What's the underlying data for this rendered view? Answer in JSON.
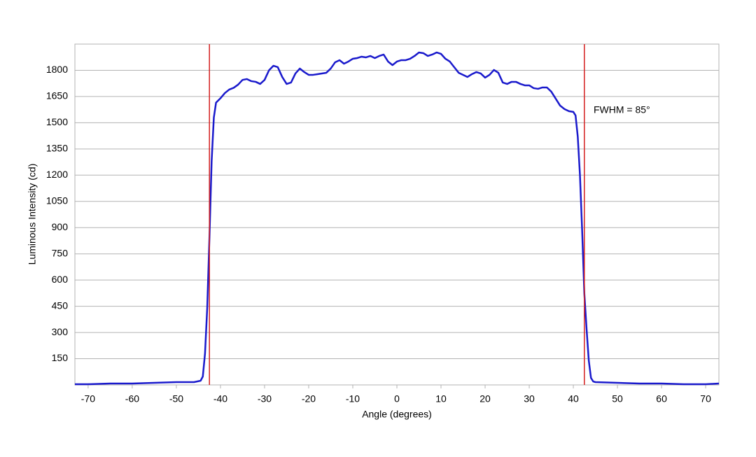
{
  "chart_data": {
    "type": "line",
    "xlabel": "Angle (degrees)",
    "ylabel": "Luminous Intensity (cd)",
    "annotation": "FWHM = 85°",
    "xlim": [
      -73,
      73
    ],
    "xticks": [
      -70,
      -60,
      -50,
      -40,
      -30,
      -20,
      -10,
      0,
      10,
      20,
      30,
      40,
      50,
      60,
      70
    ],
    "ylim": [
      0,
      1950
    ],
    "yticks": [
      150,
      300,
      450,
      600,
      750,
      900,
      1050,
      1200,
      1350,
      1500,
      1650,
      1800
    ],
    "grid": true,
    "vlines": [
      -42.5,
      42.5
    ],
    "vline_color": "#d42020",
    "x": [
      -73,
      -70,
      -65,
      -60,
      -55,
      -50,
      -46,
      -44.5,
      -44,
      -43.5,
      -43,
      -42.5,
      -42,
      -41.5,
      -41,
      -40,
      -39,
      -38,
      -37,
      -36,
      -35,
      -34,
      -33,
      -32,
      -31,
      -30,
      -29,
      -28,
      -27,
      -26,
      -25,
      -24,
      -23,
      -22,
      -21,
      -20,
      -19,
      -18,
      -17,
      -16,
      -15,
      -14,
      -13,
      -12,
      -11,
      -10,
      -9,
      -8,
      -7,
      -6,
      -5,
      -4,
      -3,
      -2,
      -1,
      0,
      1,
      2,
      3,
      4,
      5,
      6,
      7,
      8,
      9,
      10,
      11,
      12,
      13,
      14,
      15,
      16,
      17,
      18,
      19,
      20,
      21,
      22,
      23,
      24,
      25,
      26,
      27,
      28,
      29,
      30,
      31,
      32,
      33,
      34,
      35,
      36,
      37,
      38,
      39,
      40,
      40.5,
      41,
      41.5,
      42,
      42.5,
      43,
      43.5,
      44,
      44.5,
      45,
      50,
      55,
      60,
      65,
      70,
      73
    ],
    "series": [
      {
        "name": "Luminous Intensity",
        "color": "#1a1acc",
        "values": [
          4,
          4,
          8,
          8,
          12,
          16,
          16,
          24,
          48,
          180,
          440,
          840,
          1280,
          1530,
          1615,
          1640,
          1670,
          1690,
          1700,
          1718,
          1745,
          1750,
          1738,
          1734,
          1722,
          1745,
          1800,
          1826,
          1818,
          1762,
          1722,
          1730,
          1782,
          1810,
          1790,
          1774,
          1774,
          1778,
          1782,
          1786,
          1810,
          1846,
          1858,
          1838,
          1850,
          1866,
          1870,
          1878,
          1874,
          1882,
          1870,
          1882,
          1890,
          1850,
          1830,
          1850,
          1858,
          1858,
          1866,
          1882,
          1902,
          1898,
          1882,
          1890,
          1902,
          1894,
          1866,
          1850,
          1818,
          1786,
          1774,
          1762,
          1778,
          1790,
          1782,
          1758,
          1774,
          1802,
          1786,
          1730,
          1722,
          1734,
          1734,
          1722,
          1714,
          1714,
          1698,
          1694,
          1702,
          1702,
          1678,
          1638,
          1598,
          1578,
          1566,
          1562,
          1542,
          1421,
          1200,
          880,
          520,
          320,
          140,
          40,
          20,
          16,
          12,
          8,
          8,
          4,
          4,
          8
        ]
      }
    ]
  }
}
